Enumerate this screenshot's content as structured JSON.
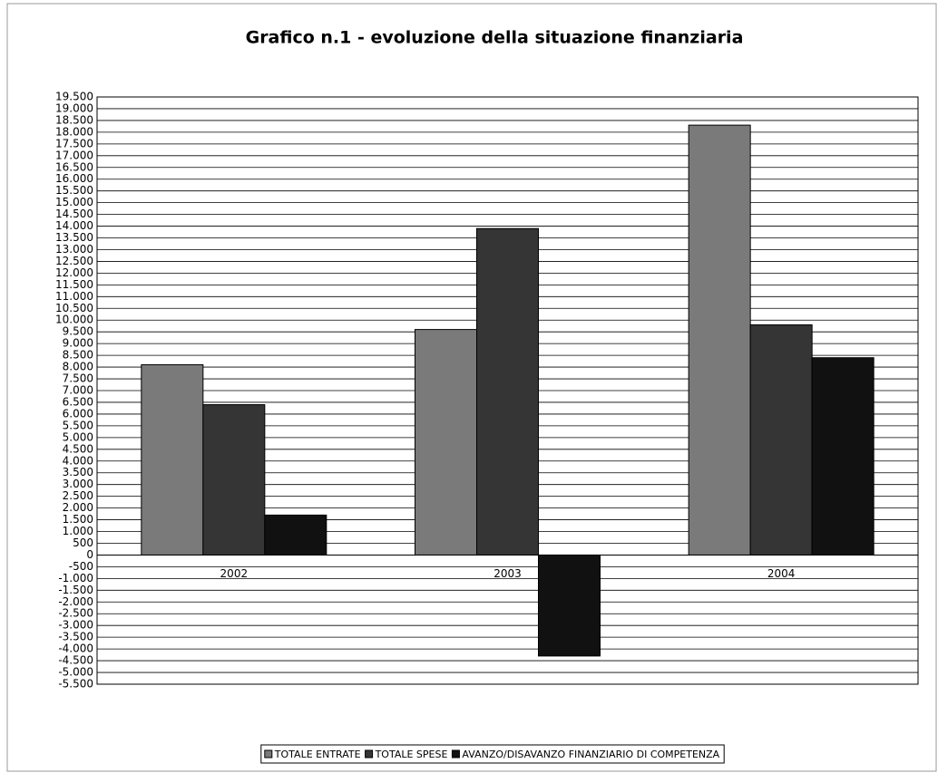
{
  "chart_data": {
    "type": "bar",
    "title": "Grafico n.1 - evoluzione della situazione finanziaria",
    "categories": [
      "2002",
      "2003",
      "2004"
    ],
    "series": [
      {
        "name": "TOTALE ENTRATE",
        "color": "#7a7a7a",
        "values": [
          8100,
          9600,
          18300
        ]
      },
      {
        "name": "TOTALE SPESE",
        "color": "#353535",
        "values": [
          6400,
          13900,
          9800
        ]
      },
      {
        "name": "AVANZO/DISAVANZO FINANZIARIO DI COMPETENZA",
        "color": "#111111",
        "values": [
          1700,
          -4300,
          8400
        ]
      }
    ],
    "ylim": [
      -5500,
      19500
    ],
    "yticks": [
      {
        "value": 19500,
        "label": "19.500"
      },
      {
        "value": 19000,
        "label": "19.000"
      },
      {
        "value": 18500,
        "label": "18.500"
      },
      {
        "value": 18000,
        "label": "18.000"
      },
      {
        "value": 17500,
        "label": "17.500"
      },
      {
        "value": 17000,
        "label": "17.000"
      },
      {
        "value": 16500,
        "label": "16.500"
      },
      {
        "value": 16000,
        "label": "16.000"
      },
      {
        "value": 15500,
        "label": "15.500"
      },
      {
        "value": 15000,
        "label": "15.000"
      },
      {
        "value": 14500,
        "label": "14.500"
      },
      {
        "value": 14000,
        "label": "14.000"
      },
      {
        "value": 13500,
        "label": "13.500"
      },
      {
        "value": 13000,
        "label": "13.000"
      },
      {
        "value": 12500,
        "label": "12.500"
      },
      {
        "value": 12000,
        "label": "12.000"
      },
      {
        "value": 11500,
        "label": "11.500"
      },
      {
        "value": 11000,
        "label": "11.000"
      },
      {
        "value": 10500,
        "label": "10.500"
      },
      {
        "value": 10000,
        "label": "10.000"
      },
      {
        "value": 9500,
        "label": "9.500"
      },
      {
        "value": 9000,
        "label": "9.000"
      },
      {
        "value": 8500,
        "label": "8.500"
      },
      {
        "value": 8000,
        "label": "8.000"
      },
      {
        "value": 7500,
        "label": "7.500"
      },
      {
        "value": 7000,
        "label": "7.000"
      },
      {
        "value": 6500,
        "label": "6.500"
      },
      {
        "value": 6000,
        "label": "6.000"
      },
      {
        "value": 5500,
        "label": "5.500"
      },
      {
        "value": 5000,
        "label": "5.000"
      },
      {
        "value": 4500,
        "label": "4.500"
      },
      {
        "value": 4000,
        "label": "4.000"
      },
      {
        "value": 3500,
        "label": "3.500"
      },
      {
        "value": 3000,
        "label": "3.000"
      },
      {
        "value": 2500,
        "label": "2.500"
      },
      {
        "value": 2000,
        "label": "2.000"
      },
      {
        "value": 1500,
        "label": "1.500"
      },
      {
        "value": 1000,
        "label": "1.000"
      },
      500,
      0,
      -500,
      {
        "value": -1000,
        "label": "-1.000"
      },
      {
        "value": -1500,
        "label": "-1.500"
      },
      {
        "value": -2000,
        "label": "-2.000"
      },
      {
        "value": -2500,
        "label": "-2.500"
      },
      {
        "value": -3000,
        "label": "-3.000"
      },
      {
        "value": -3500,
        "label": "-3.500"
      },
      {
        "value": -4000,
        "label": "-4.000"
      },
      {
        "value": -4500,
        "label": "-4.500"
      },
      {
        "value": -5000,
        "label": "-5.000"
      },
      {
        "value": -5500,
        "label": "-5.500"
      }
    ],
    "grid": true,
    "legend": "bottom"
  }
}
